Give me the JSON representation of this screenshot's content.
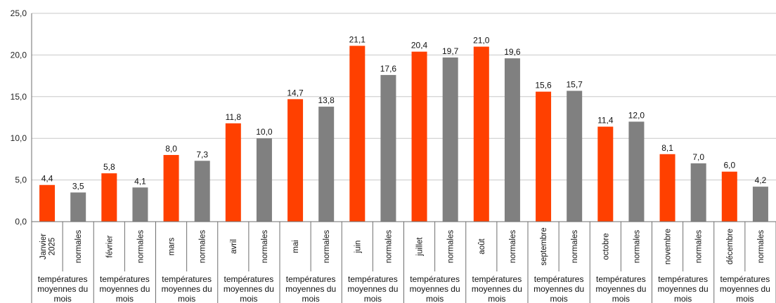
{
  "chart_data": {
    "type": "bar",
    "ylim": [
      0,
      25
    ],
    "y_ticks": [
      "0,0",
      "5,0",
      "10,0",
      "15,0",
      "20,0",
      "25,0"
    ],
    "grid": true,
    "colors": {
      "measured": "#ff4000",
      "normal": "#808080",
      "grid": "#c8c8c8",
      "axis": "#6e6e6e"
    },
    "group_label": [
      "températures",
      "moyennes du",
      "mois"
    ],
    "categories": [
      {
        "label": [
          "Janvier",
          "2025"
        ],
        "value": 4.4,
        "display": "4,4",
        "kind": "measured"
      },
      {
        "label": [
          "normales"
        ],
        "value": 3.5,
        "display": "3,5",
        "kind": "normal"
      },
      {
        "label": [
          "février"
        ],
        "value": 5.8,
        "display": "5,8",
        "kind": "measured"
      },
      {
        "label": [
          "normales"
        ],
        "value": 4.1,
        "display": "4,1",
        "kind": "normal"
      },
      {
        "label": [
          "mars"
        ],
        "value": 8.0,
        "display": "8,0",
        "kind": "measured"
      },
      {
        "label": [
          "normales"
        ],
        "value": 7.3,
        "display": "7,3",
        "kind": "normal"
      },
      {
        "label": [
          "avril"
        ],
        "value": 11.8,
        "display": "11,8",
        "kind": "measured"
      },
      {
        "label": [
          "normales"
        ],
        "value": 10.0,
        "display": "10,0",
        "kind": "normal"
      },
      {
        "label": [
          "mai"
        ],
        "value": 14.7,
        "display": "14,7",
        "kind": "measured"
      },
      {
        "label": [
          "normales"
        ],
        "value": 13.8,
        "display": "13,8",
        "kind": "normal"
      },
      {
        "label": [
          "juin"
        ],
        "value": 21.1,
        "display": "21,1",
        "kind": "measured"
      },
      {
        "label": [
          "normales"
        ],
        "value": 17.6,
        "display": "17,6",
        "kind": "normal"
      },
      {
        "label": [
          "juillet"
        ],
        "value": 20.4,
        "display": "20,4",
        "kind": "measured"
      },
      {
        "label": [
          "normales"
        ],
        "value": 19.7,
        "display": "19,7",
        "kind": "normal"
      },
      {
        "label": [
          "août"
        ],
        "value": 21.0,
        "display": "21,0",
        "kind": "measured"
      },
      {
        "label": [
          "normales"
        ],
        "value": 19.6,
        "display": "19,6",
        "kind": "normal"
      },
      {
        "label": [
          "septembre"
        ],
        "value": 15.6,
        "display": "15,6",
        "kind": "measured"
      },
      {
        "label": [
          "normales"
        ],
        "value": 15.7,
        "display": "15,7",
        "kind": "normal"
      },
      {
        "label": [
          "octobre"
        ],
        "value": 11.4,
        "display": "11,4",
        "kind": "measured"
      },
      {
        "label": [
          "normales"
        ],
        "value": 12.0,
        "display": "12,0",
        "kind": "normal"
      },
      {
        "label": [
          "novembre"
        ],
        "value": 8.1,
        "display": "8,1",
        "kind": "measured"
      },
      {
        "label": [
          "normales"
        ],
        "value": 7.0,
        "display": "7,0",
        "kind": "normal"
      },
      {
        "label": [
          "décembre"
        ],
        "value": 6.0,
        "display": "6,0",
        "kind": "measured"
      },
      {
        "label": [
          "normales"
        ],
        "value": 4.2,
        "display": "4,2",
        "kind": "normal"
      }
    ]
  }
}
